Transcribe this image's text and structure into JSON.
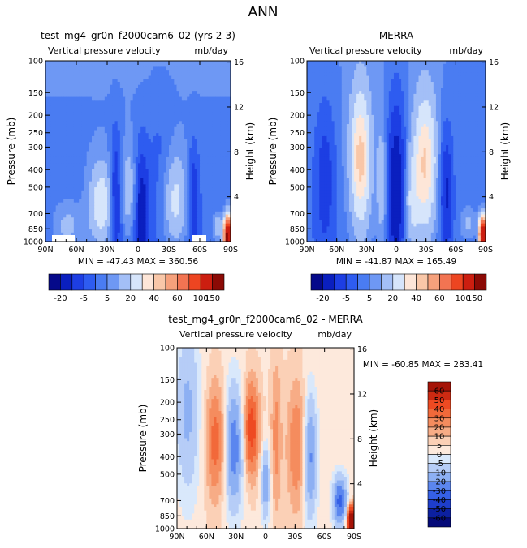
{
  "suptitle": "ANN",
  "chart_data": [
    {
      "type": "heatmap",
      "title": "test_mg4_gr0n_f2000cam6_02 (yrs 2-3)",
      "subtitle_left": "Vertical pressure velocity",
      "subtitle_right": "mb/day",
      "ylabel": "Pressure (mb)",
      "ylabel_right": "Height (km)",
      "x_ticks": [
        "90N",
        "60N",
        "30N",
        "0",
        "30S",
        "60S",
        "90S"
      ],
      "y_ticks": [
        "100",
        "150",
        "200",
        "250",
        "300",
        "400",
        "500",
        "700",
        "850",
        "1000"
      ],
      "y_ticks_right": [
        "16",
        "12",
        "8",
        "4"
      ],
      "stats": "MIN = -47.43   MAX = 360.56",
      "colorbar_labels": [
        "-20",
        "-5",
        "5",
        "20",
        "40",
        "60",
        "100",
        "150"
      ]
    },
    {
      "type": "heatmap",
      "title": "MERRA",
      "subtitle_left": "Vertical pressure velocity",
      "subtitle_right": "mb/day",
      "ylabel": "Pressure (mb)",
      "ylabel_right": "Height (km)",
      "x_ticks": [
        "90N",
        "60N",
        "30N",
        "0",
        "30S",
        "60S",
        "90S"
      ],
      "y_ticks": [
        "100",
        "150",
        "200",
        "250",
        "300",
        "400",
        "500",
        "700",
        "850",
        "1000"
      ],
      "y_ticks_right": [
        "16",
        "12",
        "8",
        "4"
      ],
      "stats": "MIN = -41.87   MAX = 165.49",
      "colorbar_labels": [
        "-20",
        "-5",
        "5",
        "20",
        "40",
        "60",
        "100",
        "150"
      ]
    },
    {
      "type": "heatmap",
      "title": "test_mg4_gr0n_f2000cam6_02 - MERRA",
      "subtitle_left": "Vertical pressure velocity",
      "subtitle_right": "mb/day",
      "ylabel": "Pressure (mb)",
      "ylabel_right": "Height (km)",
      "x_ticks": [
        "90N",
        "60N",
        "30N",
        "0",
        "30S",
        "60S",
        "90S"
      ],
      "y_ticks": [
        "100",
        "150",
        "200",
        "250",
        "300",
        "400",
        "500",
        "700",
        "850",
        "1000"
      ],
      "y_ticks_right": [
        "16",
        "12",
        "8",
        "4"
      ],
      "stats": "MIN = -60.85   MAX = 283.41",
      "colorbar_labels": [
        "60",
        "50",
        "40",
        "30",
        "20",
        "10",
        "5",
        "0",
        "-5",
        "-10",
        "-20",
        "-30",
        "-40",
        "-50",
        "-60"
      ]
    }
  ],
  "colors": {
    "main_palette": [
      "#05098a",
      "#0a1fbf",
      "#1d3ee3",
      "#2e5cf0",
      "#4a7cf2",
      "#6e98f4",
      "#a3bff7",
      "#d6e5fb",
      "#fde6d8",
      "#f9c7a8",
      "#f6a17c",
      "#f27452",
      "#ed4521",
      "#cc1e10",
      "#8b0a05"
    ],
    "diff_palette": [
      "#a51307",
      "#cc2a12",
      "#ee4a22",
      "#f2693a",
      "#f58c5e",
      "#f7ac86",
      "#fbd0b6",
      "#fde9dc",
      "#d9e8fb",
      "#b6cdf7",
      "#8db0f3",
      "#5b86ef",
      "#3560e6",
      "#1e3ecc",
      "#0c20a0",
      "#040a78"
    ]
  }
}
